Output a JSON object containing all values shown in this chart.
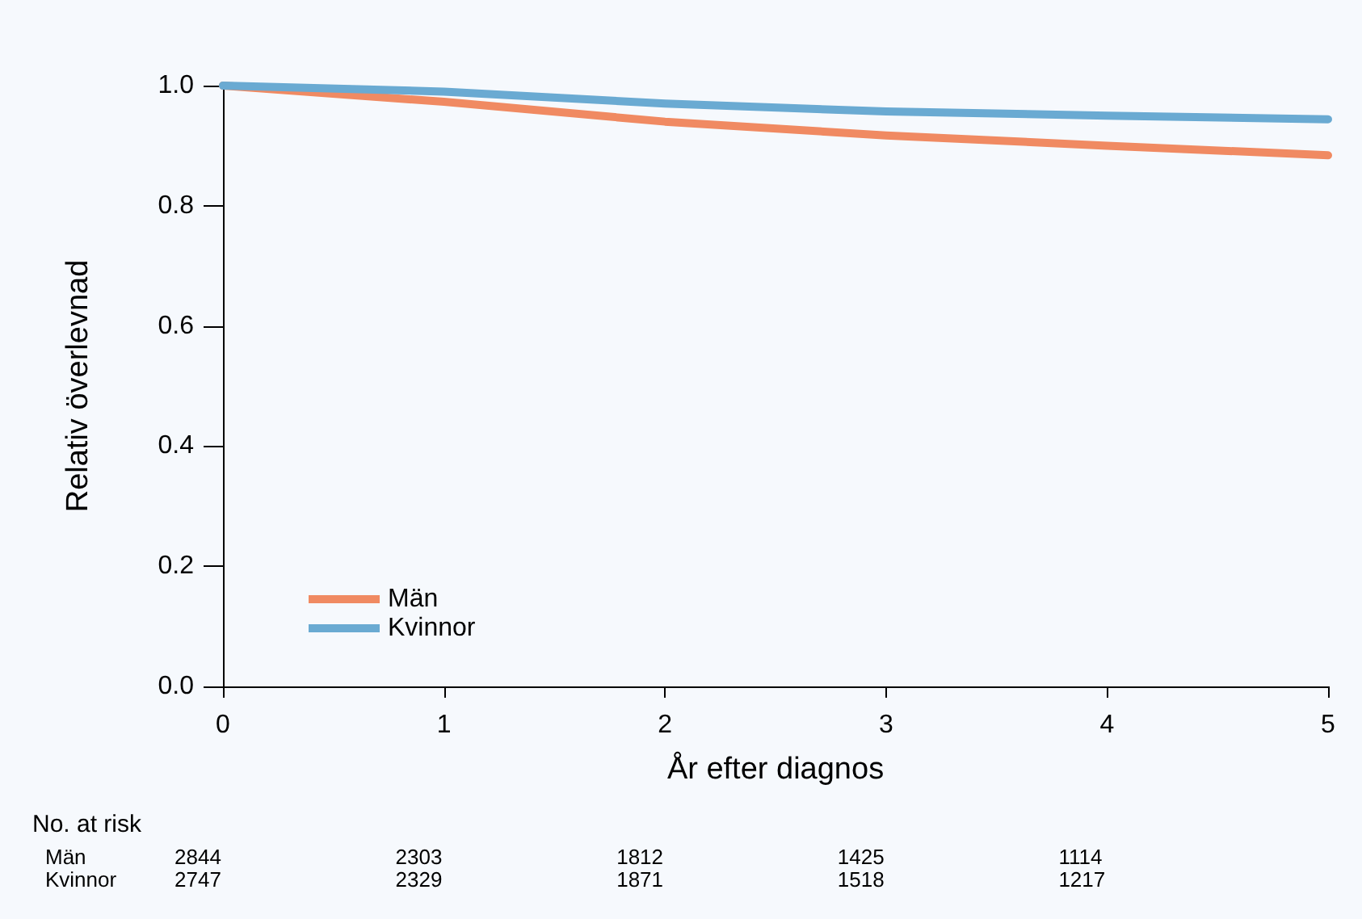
{
  "chart_data": {
    "type": "line",
    "xlabel": "År efter diagnos",
    "ylabel": "Relativ överlevnad",
    "x": [
      0,
      1,
      2,
      3,
      4,
      5
    ],
    "series": [
      {
        "name": "Män",
        "color": "#f08a62",
        "values": [
          1.0,
          0.973,
          0.94,
          0.917,
          0.9,
          0.884
        ]
      },
      {
        "name": "Kvinnor",
        "color": "#6aaad2",
        "values": [
          1.0,
          0.99,
          0.97,
          0.957,
          0.95,
          0.944
        ]
      }
    ],
    "xlim": [
      0,
      5
    ],
    "xticks": [
      0,
      1,
      2,
      3,
      4,
      5
    ],
    "ylim": [
      0,
      1
    ],
    "yticks": [
      {
        "value": 0,
        "label": "0.0"
      },
      {
        "value": 0.2,
        "label": "0.2"
      },
      {
        "value": 0.4,
        "label": "0.4"
      },
      {
        "value": 0.6,
        "label": "0.6"
      },
      {
        "value": 0.8,
        "label": "0.8"
      },
      {
        "value": 1,
        "label": "1.0"
      }
    ],
    "grid": false,
    "legend": "bottom left",
    "marker": "none",
    "line_style": "solid",
    "annotations": [
      "No. at risk",
      "Män",
      "2844",
      "2303",
      "1812",
      "1425",
      "1114",
      "Kvinnor",
      "2747",
      "2329",
      "1871",
      "1518",
      "1217"
    ]
  }
}
